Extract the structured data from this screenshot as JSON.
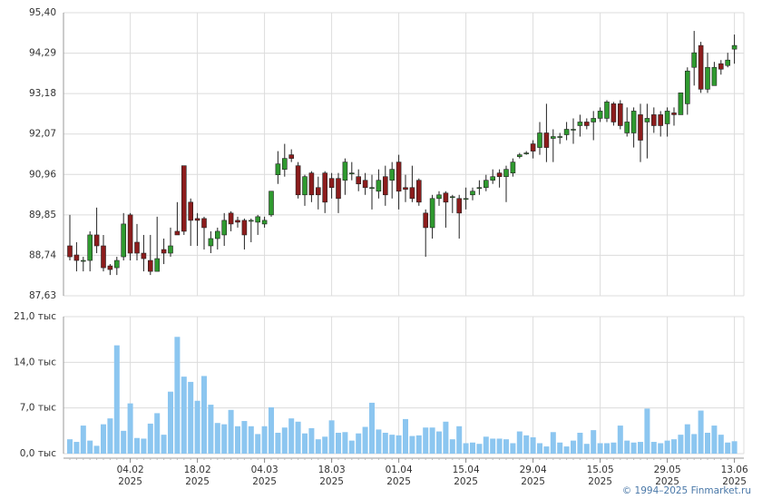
{
  "chart_data": [
    {
      "type": "candlestick",
      "up_color": "#2f9a2f",
      "down_color": "#8c1c1c",
      "wick_color": "#222222",
      "categories": [
        null,
        null,
        null,
        null,
        null,
        null,
        null,
        null,
        null,
        "04.02\n2025",
        null,
        null,
        null,
        null,
        null,
        null,
        null,
        null,
        null,
        "18.02\n2025",
        null,
        null,
        null,
        null,
        null,
        null,
        null,
        null,
        null,
        "04.03\n2025",
        null,
        null,
        null,
        null,
        null,
        null,
        null,
        null,
        null,
        "18.03\n2025",
        null,
        null,
        null,
        null,
        null,
        null,
        null,
        null,
        null,
        "01.04\n2025",
        null,
        null,
        null,
        null,
        null,
        null,
        null,
        null,
        null,
        "15.04\n2025",
        null,
        null,
        null,
        null,
        null,
        null,
        null,
        null,
        null,
        "29.04\n2025",
        null,
        null,
        null,
        null,
        null,
        null,
        null,
        null,
        null,
        "15.05\n2025",
        null,
        null,
        null,
        null,
        null,
        null,
        null,
        null,
        null,
        "29.05\n2025",
        null,
        null,
        null,
        null,
        null,
        null,
        null,
        null,
        null,
        "13.06\n2025"
      ],
      "open": [
        89.0,
        88.75,
        88.6,
        88.6,
        89.3,
        89.0,
        88.45,
        88.4,
        88.7,
        89.85,
        89.1,
        88.8,
        88.6,
        88.3,
        88.9,
        88.8,
        89.4,
        91.2,
        90.2,
        89.75,
        89.75,
        89.0,
        89.2,
        89.3,
        89.9,
        89.7,
        89.7,
        89.7,
        89.65,
        89.6,
        89.85,
        90.95,
        91.1,
        91.5,
        91.2,
        90.4,
        91.0,
        90.6,
        91.0,
        90.85,
        90.85,
        90.8,
        91.0,
        90.9,
        90.8,
        90.6,
        90.5,
        90.9,
        90.8,
        91.3,
        90.6,
        90.6,
        90.8,
        89.9,
        89.5,
        90.3,
        90.45,
        90.35,
        90.3,
        90.3,
        90.4,
        90.6,
        90.6,
        90.8,
        91.0,
        90.9,
        91.0,
        91.45,
        91.55,
        91.8,
        91.7,
        92.1,
        91.95,
        92.0,
        92.05,
        92.2,
        92.3,
        92.4,
        92.4,
        92.5,
        92.5,
        92.9,
        92.9,
        92.1,
        92.1,
        92.6,
        92.4,
        92.6,
        92.6,
        92.35,
        92.65,
        92.6,
        92.9,
        93.9,
        94.5,
        93.3,
        93.4,
        94.0,
        93.95,
        94.4
      ],
      "high": [
        89.85,
        89.1,
        88.7,
        89.4,
        90.05,
        89.3,
        88.5,
        88.7,
        89.9,
        89.9,
        89.6,
        89.3,
        89.3,
        89.8,
        89.2,
        89.5,
        90.2,
        91.2,
        90.3,
        89.9,
        89.8,
        89.4,
        89.5,
        89.9,
        89.95,
        89.8,
        89.75,
        89.75,
        89.85,
        89.8,
        90.5,
        91.6,
        91.8,
        91.65,
        91.3,
        90.95,
        91.05,
        90.9,
        91.05,
        91.0,
        91.0,
        91.4,
        91.3,
        91.1,
        91.0,
        90.95,
        91.1,
        91.2,
        91.3,
        91.5,
        90.95,
        91.2,
        90.85,
        90.0,
        90.4,
        90.5,
        90.5,
        90.4,
        90.4,
        90.6,
        90.6,
        90.8,
        90.95,
        91.1,
        91.1,
        91.2,
        91.4,
        91.55,
        91.6,
        91.9,
        92.4,
        92.9,
        92.2,
        92.1,
        92.4,
        92.5,
        92.6,
        92.5,
        92.7,
        92.8,
        93.0,
        92.95,
        93.0,
        92.8,
        92.8,
        92.9,
        92.9,
        92.8,
        92.7,
        92.8,
        92.8,
        93.2,
        93.9,
        94.9,
        94.6,
        94.3,
        94.05,
        94.1,
        94.3,
        94.8
      ],
      "low": [
        88.6,
        88.3,
        88.3,
        88.3,
        88.8,
        88.3,
        88.2,
        88.2,
        88.6,
        88.6,
        88.6,
        88.3,
        88.2,
        88.3,
        88.5,
        88.7,
        89.3,
        89.3,
        89.0,
        89.0,
        88.9,
        88.8,
        88.9,
        89.0,
        89.4,
        89.5,
        88.9,
        89.1,
        89.3,
        89.5,
        89.8,
        90.7,
        90.9,
        91.3,
        90.3,
        90.1,
        90.2,
        90.0,
        89.9,
        90.3,
        89.9,
        90.4,
        90.8,
        90.5,
        90.4,
        90.0,
        90.3,
        90.1,
        90.3,
        90.0,
        90.2,
        90.2,
        90.1,
        88.7,
        89.2,
        90.1,
        89.5,
        89.9,
        89.2,
        90.0,
        90.25,
        90.4,
        90.5,
        90.7,
        90.6,
        90.2,
        90.9,
        91.4,
        91.5,
        91.4,
        91.5,
        91.3,
        91.3,
        91.8,
        91.9,
        91.8,
        92.0,
        92.2,
        91.9,
        92.4,
        92.4,
        92.3,
        92.2,
        92.0,
        91.7,
        91.3,
        91.4,
        92.1,
        92.0,
        92.0,
        92.3,
        92.6,
        92.6,
        93.4,
        93.2,
        93.2,
        93.4,
        93.7,
        93.9,
        94.0
      ],
      "close": [
        88.7,
        88.6,
        88.6,
        89.3,
        89.0,
        88.4,
        88.35,
        88.6,
        89.6,
        88.8,
        88.8,
        88.65,
        88.3,
        88.65,
        88.8,
        89.0,
        89.3,
        89.4,
        89.7,
        89.7,
        89.5,
        89.2,
        89.4,
        89.7,
        89.6,
        89.65,
        89.3,
        89.7,
        89.8,
        89.7,
        90.5,
        91.25,
        91.4,
        91.4,
        90.4,
        90.9,
        90.4,
        90.4,
        90.2,
        90.6,
        90.3,
        91.3,
        91.0,
        90.7,
        90.6,
        90.6,
        90.8,
        90.4,
        91.1,
        90.5,
        90.55,
        90.3,
        90.2,
        89.5,
        90.3,
        90.4,
        90.2,
        90.35,
        89.9,
        90.3,
        90.5,
        90.6,
        90.8,
        90.9,
        90.9,
        91.1,
        91.3,
        91.5,
        91.55,
        91.6,
        92.1,
        91.7,
        92.0,
        92.0,
        92.2,
        92.2,
        92.4,
        92.3,
        92.5,
        92.7,
        92.95,
        92.4,
        92.3,
        92.4,
        92.7,
        91.9,
        92.5,
        92.3,
        92.3,
        92.7,
        92.6,
        93.2,
        93.8,
        94.3,
        93.3,
        93.9,
        93.9,
        93.85,
        94.1,
        94.5
      ],
      "ylim": [
        87.63,
        95.4
      ],
      "yticks": [
        {
          "value": 87.63,
          "label": "87,63"
        },
        {
          "value": 88.74,
          "label": "88,74"
        },
        {
          "value": 89.85,
          "label": "89,85"
        },
        {
          "value": 90.96,
          "label": "90,96"
        },
        {
          "value": 92.07,
          "label": "92,07"
        },
        {
          "value": 93.18,
          "label": "93,18"
        },
        {
          "value": 94.29,
          "label": "94,29"
        },
        {
          "value": 95.4,
          "label": "95,40"
        }
      ],
      "grid": true
    },
    {
      "type": "bar",
      "color": "#8cc6f0",
      "values": [
        2.2,
        1.8,
        4.3,
        2.0,
        1.2,
        4.5,
        5.4,
        16.6,
        3.5,
        7.7,
        2.4,
        2.3,
        4.6,
        6.2,
        2.9,
        9.5,
        17.9,
        11.8,
        11.0,
        8.1,
        11.9,
        7.5,
        4.7,
        4.5,
        6.7,
        4.2,
        5.0,
        4.2,
        3.0,
        4.2,
        7.1,
        3.2,
        4.0,
        5.4,
        4.9,
        3.1,
        3.9,
        2.2,
        2.6,
        5.1,
        3.2,
        3.3,
        2.0,
        3.1,
        4.1,
        7.8,
        3.7,
        3.2,
        2.9,
        2.8,
        5.3,
        2.7,
        2.8,
        4.0,
        4.0,
        3.4,
        4.9,
        2.2,
        4.2,
        1.6,
        1.7,
        1.5,
        2.6,
        2.3,
        2.3,
        2.2,
        1.6,
        3.4,
        2.8,
        2.5,
        1.6,
        1.1,
        3.3,
        1.7,
        1.1,
        2.0,
        3.2,
        1.5,
        3.6,
        1.6,
        1.6,
        1.7,
        4.3,
        2.0,
        1.7,
        1.8,
        6.9,
        1.8,
        1.6,
        2.0,
        2.2,
        2.9,
        4.5,
        3.0,
        6.6,
        3.2,
        4.3,
        2.9,
        1.7,
        1.9
      ],
      "ylim": [
        0,
        21
      ],
      "yticks": [
        {
          "value": 0,
          "label": "0,0 тыс"
        },
        {
          "value": 7,
          "label": "7,0 тыс"
        },
        {
          "value": 14,
          "label": "14,0 тыс"
        },
        {
          "value": 21,
          "label": "21,0 тыс"
        }
      ],
      "grid": true
    }
  ],
  "credit": "© 1994–2025 Finmarket.ru"
}
